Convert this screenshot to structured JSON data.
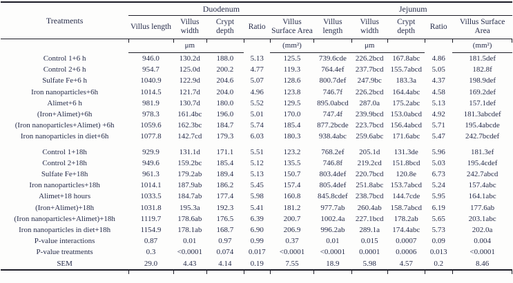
{
  "chart_data": {
    "type": "table",
    "treatments_header": "Treatments",
    "groups": [
      {
        "label": "Duodenum",
        "columns": [
          "Villus length",
          "Villus width",
          "Crypt depth",
          "Ratio",
          "Villus Surface Area"
        ]
      },
      {
        "label": "Jejunum",
        "columns": [
          "Villus length",
          "Villus width",
          "Crypt depth",
          "Ratio",
          "Villus Surface Area"
        ]
      }
    ],
    "units": {
      "um": "μm",
      "mm2": "(mm²)"
    },
    "rows": [
      {
        "treatment": "Control 1+6 h",
        "values": [
          "946.0",
          "130.2d",
          "188.0",
          "5.13",
          "125.5",
          "739.6cde",
          "226.2bcd",
          "167.8abc",
          "4.86",
          "181.5def"
        ]
      },
      {
        "treatment": "Control 2+6 h",
        "values": [
          "954.7",
          "125.0d",
          "200.2",
          "4.77",
          "119.3",
          "764.4ef",
          "237.7bcd",
          "155.7abcd",
          "5.05",
          "182.8f"
        ]
      },
      {
        "treatment": "Sulfate Fe+6 h",
        "values": [
          "1040.9",
          "122.9d",
          "204.6",
          "5.07",
          "128.6",
          "800.7def",
          "247.9bc",
          "183.3a",
          "4.37",
          "198.9def"
        ]
      },
      {
        "treatment": "Iron nanoparticles+6h",
        "values": [
          "1014.5",
          "121.7d",
          "204.0",
          "4.96",
          "123.8",
          "746.7f",
          "226.2bcd",
          "164.4abc",
          "4.58",
          "169.2def"
        ]
      },
      {
        "treatment": "Alimet+6 h",
        "values": [
          "981.9",
          "130.7d",
          "180.0",
          "5.52",
          "129.5",
          "895.0abcd",
          "287.0a",
          "175.2abc",
          "5.13",
          "157.1def"
        ]
      },
      {
        "treatment": "(Iron+Alimet)+6h",
        "values": [
          "978.3",
          "161.4bc",
          "196.0",
          "5.01",
          "170.0",
          "747.4f",
          "239.9bcd",
          "153.0abcd",
          "4.92",
          "181.3abcdef"
        ]
      },
      {
        "treatment": "(Iron nanoparticles+Alimet) +6h",
        "values": [
          "1059.6",
          "162.3bc",
          "184.7",
          "5.74",
          "185.4",
          "877.2bcde",
          "223.7bcd",
          "156.4abcd",
          "5.71",
          "195.4abcde"
        ]
      },
      {
        "treatment": "Iron nanoparticles in diet+6h",
        "values": [
          "1077.8",
          "142.7cd",
          "179.3",
          "6.03",
          "180.3",
          "938.4abc",
          "259.6abc",
          "171.6abc",
          "5.47",
          "242.7bcdef"
        ]
      },
      {
        "treatment": "Control 1+18h",
        "values": [
          "929.9",
          "131.1d",
          "171.1",
          "5.51",
          "123.2",
          "768.2ef",
          "205.1d",
          "131.3de",
          "5.96",
          "181.3ef"
        ]
      },
      {
        "treatment": "Control 2+18h",
        "values": [
          "949.6",
          "159.2bc",
          "185.4",
          "5.12",
          "135.5",
          "746.8f",
          "219.2cd",
          "151.8bcd",
          "5.03",
          "195.4cdef"
        ]
      },
      {
        "treatment": "Sulfate Fe+18h",
        "values": [
          "961.3",
          "179.2ab",
          "189.4",
          "5.13",
          "150.7",
          "803.4def",
          "220.7bcd",
          "120.8e",
          "6.73",
          "242.7abcd"
        ]
      },
      {
        "treatment": "Iron nanoparticles+18h",
        "values": [
          "1014.1",
          "187.9ab",
          "186.2",
          "5.45",
          "157.4",
          "805.4def",
          "251.8abc",
          "153.7abcd",
          "5.24",
          "157.4abc"
        ]
      },
      {
        "treatment": "Alimet+18 hours",
        "values": [
          "1033.5",
          "184.7ab",
          "177.4",
          "5.98",
          "160.8",
          "845.8cdef",
          "238.7bcd",
          "144.7cde",
          "5.95",
          "164.1abc"
        ]
      },
      {
        "treatment": "(Iron+Alimet)+18h",
        "values": [
          "1031.8",
          "195.3a",
          "192.3",
          "5.41",
          "181.2",
          "977.7ab",
          "260.4ab",
          "158.7abcd",
          "6.19",
          "177.6ab"
        ]
      },
      {
        "treatment": "(Iron nanoparticles+Alimet)+18h",
        "values": [
          "1119.7",
          "178.6ab",
          "176.5",
          "6.39",
          "200.7",
          "1002.4a",
          "227.1bcd",
          "178.2ab",
          "5.65",
          "203.1abc"
        ]
      },
      {
        "treatment": "Iron nanoparticles in diet+18h",
        "values": [
          "1154.9",
          "178.1ab",
          "168.7",
          "6.90",
          "206.9",
          "996.2ab",
          "289.1a",
          "174.4abc",
          "5.73",
          "202.0a"
        ]
      },
      {
        "treatment": "P-value interactions",
        "values": [
          "0.87",
          "0.01",
          "0.97",
          "0.99",
          "0.37",
          "0.01",
          "0.015",
          "0.0007",
          "0.09",
          "0.004"
        ]
      },
      {
        "treatment": "P-value treatments",
        "values": [
          "0.3",
          "<0.0001",
          "0.074",
          "0.017",
          "<0.0001",
          "<0.0001",
          "0.0001",
          "0.0006",
          "0.013",
          "<0.0001"
        ]
      },
      {
        "treatment": "SEM",
        "values": [
          "29.0",
          "4.43",
          "4.14",
          "0.19",
          "7.55",
          "18.9",
          "5.98",
          "4.57",
          "0.2",
          "8.46"
        ]
      }
    ]
  }
}
